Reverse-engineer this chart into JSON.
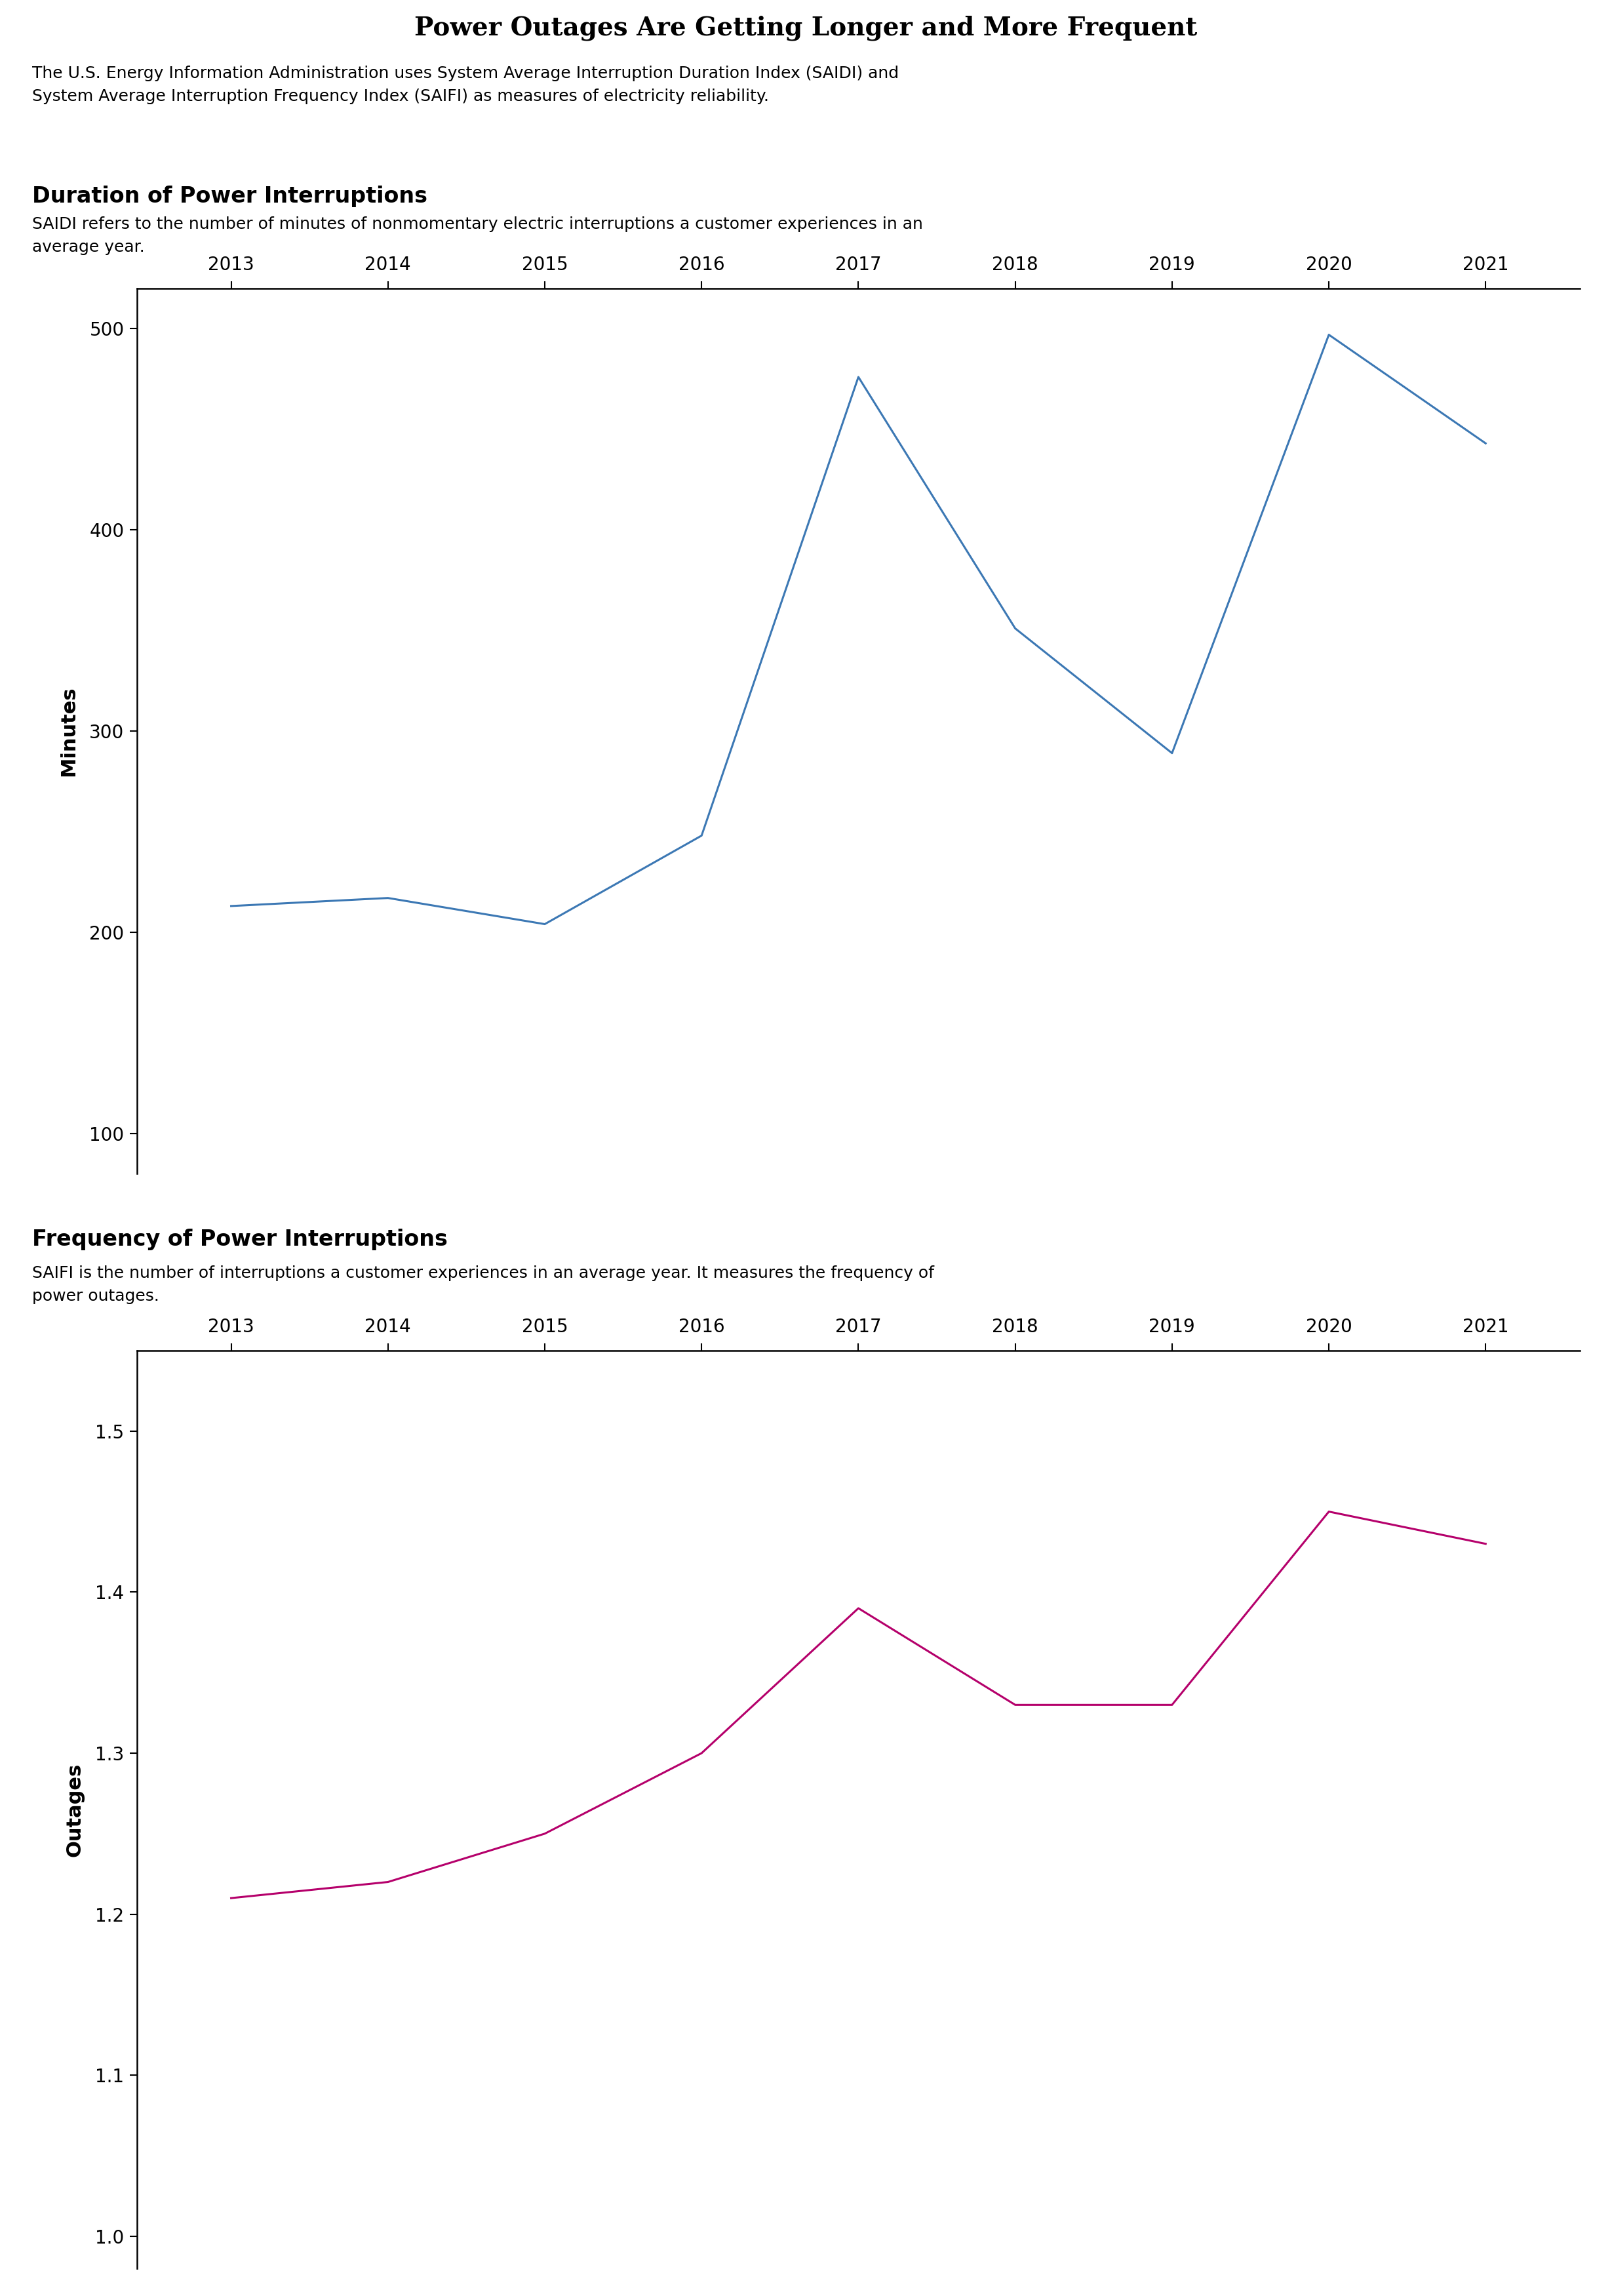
{
  "title": "Power Outages Are Getting Longer and More Frequent",
  "title_bg_color": "#e6e6e6",
  "subtitle_line1": "The U.S. Energy Information Administration uses System Average Interruption Duration Index (SAIDI) and",
  "subtitle_line2": "System Average Interruption Frequency Index (SAIFI) as measures of electricity reliability.",
  "chart1_heading": "Duration of Power Interruptions",
  "chart1_subheading_line1": "SAIDI refers to the number of minutes of nonmomentary electric interruptions a customer experiences in an",
  "chart1_subheading_line2": "average year.",
  "chart1_ylabel": "Minutes",
  "chart1_years": [
    2013,
    2014,
    2015,
    2016,
    2017,
    2018,
    2019,
    2020,
    2021
  ],
  "chart1_values": [
    213,
    217,
    204,
    248,
    476,
    351,
    289,
    497,
    443
  ],
  "chart1_color": "#3c78b4",
  "chart1_ylim": [
    80,
    520
  ],
  "chart1_yticks": [
    100,
    200,
    300,
    400,
    500
  ],
  "chart2_heading": "Frequency of Power Interruptions",
  "chart2_subheading_line1": "SAIFI is the number of interruptions a customer experiences in an average year. It measures the frequency of",
  "chart2_subheading_line2": "power outages.",
  "chart2_ylabel": "Outages",
  "chart2_years": [
    2013,
    2014,
    2015,
    2016,
    2017,
    2018,
    2019,
    2020,
    2021
  ],
  "chart2_values": [
    1.21,
    1.22,
    1.25,
    1.3,
    1.39,
    1.33,
    1.33,
    1.45,
    1.43
  ],
  "chart2_color": "#b5006b",
  "chart2_ylim": [
    0.98,
    1.55
  ],
  "chart2_yticks": [
    1.0,
    1.1,
    1.2,
    1.3,
    1.4,
    1.5
  ],
  "bg_color": "#ffffff",
  "font_color": "#000000",
  "linewidth": 2.2
}
